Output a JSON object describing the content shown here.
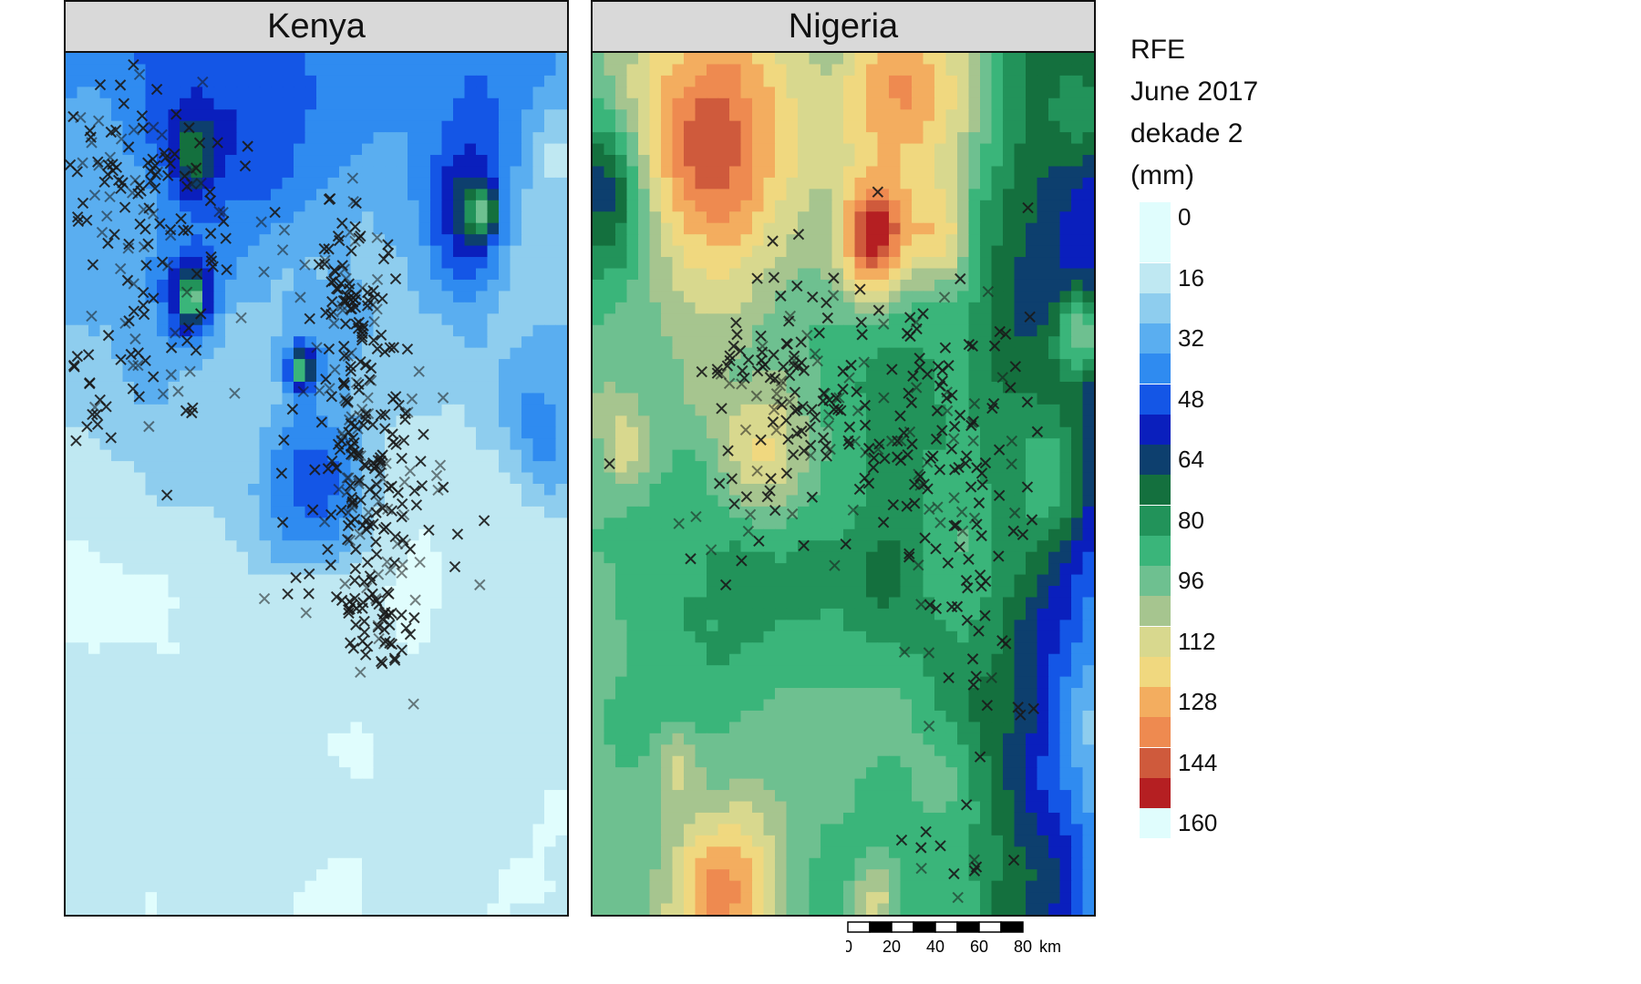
{
  "panels": [
    {
      "id": "kenya",
      "title": "Kenya"
    },
    {
      "id": "nigeria",
      "title": "Nigeria"
    }
  ],
  "legend": {
    "title_lines": [
      "RFE",
      "June 2017",
      "dekade 2",
      "(mm)"
    ],
    "breaks": [
      "0",
      "16",
      "32",
      "48",
      "64",
      "80",
      "96",
      "112",
      "128",
      "144",
      "160"
    ],
    "colors": [
      "#e0fdfd",
      "#bfe8f2",
      "#8ecdee",
      "#5aaef0",
      "#2f8bf0",
      "#1456e6",
      "#0a1fbd",
      "#0d3f6e",
      "#14703e",
      "#22935a",
      "#3ab57a",
      "#6ec090",
      "#a6c58f",
      "#d8d88e",
      "#f0d87f",
      "#f3ad5f",
      "#ee8a50",
      "#cf5a3c",
      "#b51f22"
    ]
  },
  "scalebar": {
    "ticks": [
      "0",
      "20",
      "40",
      "60",
      "80"
    ],
    "unit": "km"
  },
  "map_data": {
    "kenya_markers": 520,
    "nigeria_markers": 320
  }
}
